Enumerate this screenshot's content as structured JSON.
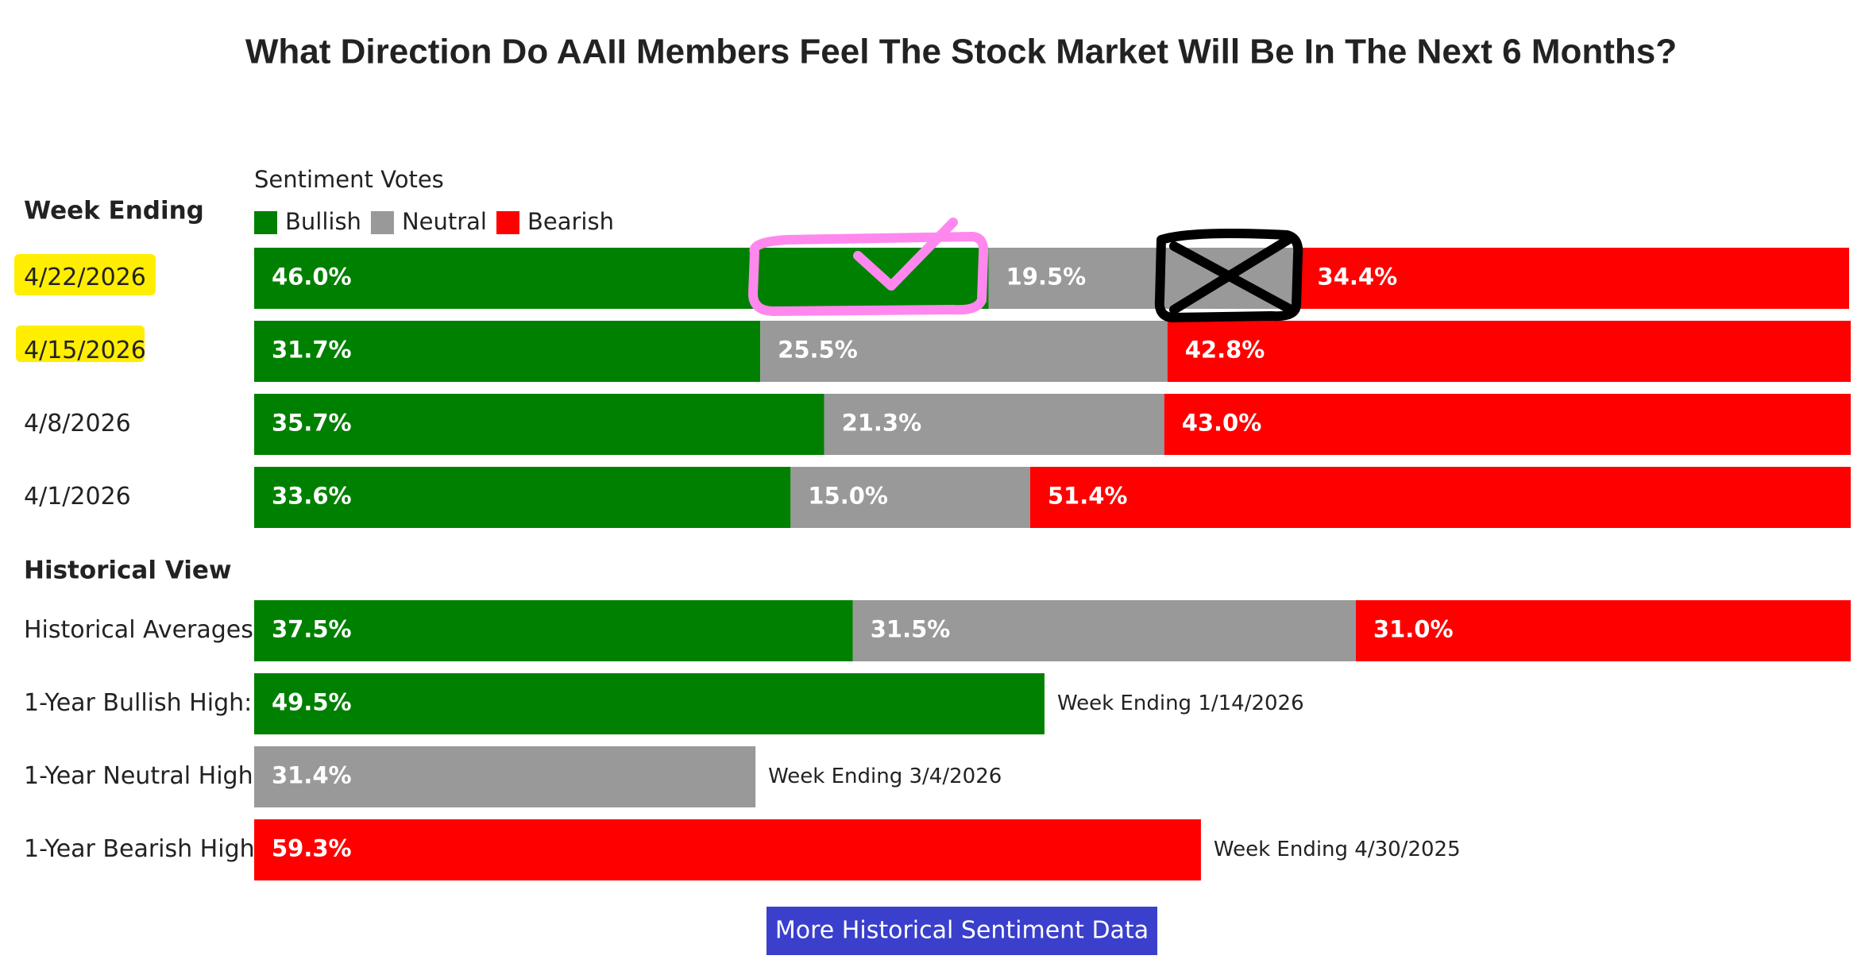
{
  "title": "What Direction Do AAII Members Feel The Stock Market Will Be In The Next 6 Months?",
  "chart_data": [
    {
      "type": "bar",
      "orientation": "horizontal",
      "stacked": true,
      "subtitle": "Sentiment Votes",
      "y_label": "Week Ending",
      "legend": "top",
      "categories": [
        "4/22/2026",
        "4/15/2026",
        "4/8/2026",
        "4/1/2026"
      ],
      "xlim": [
        0,
        100
      ],
      "series": [
        {
          "name": "Bullish",
          "color": "#008000",
          "values": [
            46.0,
            31.7,
            35.7,
            33.6
          ],
          "value_labels": [
            "46.0%",
            "31.7%",
            "35.7%",
            "33.6%"
          ]
        },
        {
          "name": "Neutral",
          "color": "#999999",
          "values": [
            19.5,
            25.5,
            21.3,
            15.0
          ],
          "value_labels": [
            "19.5%",
            "25.5%",
            "21.3%",
            "15.0%"
          ]
        },
        {
          "name": "Bearish",
          "color": "#ff0000",
          "values": [
            34.4,
            42.8,
            43.0,
            51.4
          ],
          "value_labels": [
            "34.4%",
            "42.8%",
            "43.0%",
            "51.4%"
          ]
        }
      ]
    },
    {
      "type": "bar",
      "orientation": "horizontal",
      "stacked": true,
      "title": "Historical View",
      "categories": [
        "Historical Averages"
      ],
      "xlim": [
        0,
        100
      ],
      "series": [
        {
          "color": "#008000",
          "values": [
            37.5
          ],
          "value_labels": [
            "37.5%"
          ]
        },
        {
          "color": "#999999",
          "values": [
            31.5
          ],
          "value_labels": [
            "31.5%"
          ]
        },
        {
          "color": "#ff0000",
          "values": [
            31.0
          ],
          "value_labels": [
            "31.0%"
          ]
        }
      ]
    },
    {
      "type": "bar",
      "orientation": "horizontal",
      "categories": [
        "1-Year Bullish High:",
        "1-Year Neutral High",
        "1-Year Bearish High"
      ],
      "xlim": [
        0,
        100
      ],
      "values": [
        49.5,
        31.4,
        59.3
      ],
      "value_labels": [
        "49.5%",
        "31.4%",
        "59.3%"
      ],
      "colors": [
        "#008000",
        "#999999",
        "#ff0000"
      ],
      "annotations": [
        "Week Ending 1/14/2026",
        "Week Ending 3/4/2026",
        "Week Ending 4/30/2025"
      ]
    }
  ],
  "button": {
    "label": "More Historical Sentiment Data"
  }
}
